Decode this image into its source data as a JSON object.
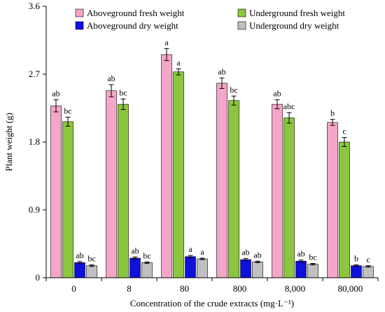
{
  "chart_data": {
    "type": "bar",
    "xlabel": "Concentration of the crude extracts (mg·L⁻¹)",
    "ylabel": "Plant weight (g)",
    "ylim": [
      0,
      3.6
    ],
    "yticks": [
      "0",
      "0.9",
      "1.8",
      "2.7",
      "3.6"
    ],
    "grid": false,
    "legend_position": "top",
    "categories": [
      "0",
      "8",
      "80",
      "800",
      "8,000",
      "80,000"
    ],
    "series": [
      {
        "name": "Aboveground fresh weight",
        "color": "#f4a6c8",
        "values": [
          2.28,
          2.48,
          2.96,
          2.58,
          2.3,
          2.06
        ],
        "errors": [
          0.08,
          0.08,
          0.08,
          0.07,
          0.06,
          0.04
        ],
        "labels": [
          "ab",
          "ab",
          "a",
          "ab",
          "ab",
          "b"
        ]
      },
      {
        "name": "Underground fresh weight",
        "color": "#8cc63f",
        "values": [
          2.07,
          2.3,
          2.73,
          2.35,
          2.12,
          1.8
        ],
        "errors": [
          0.06,
          0.07,
          0.04,
          0.06,
          0.07,
          0.06
        ],
        "labels": [
          "bc",
          "bc",
          "a",
          "bc",
          "abc",
          "c"
        ]
      },
      {
        "name": "Aboveground dry weight",
        "color": "#1010dd",
        "values": [
          0.2,
          0.26,
          0.28,
          0.24,
          0.22,
          0.16
        ],
        "errors": [
          0.015,
          0.015,
          0.015,
          0.015,
          0.015,
          0.01
        ],
        "labels": [
          "ab",
          "ab",
          "a",
          "ab",
          "ab",
          "b"
        ]
      },
      {
        "name": "Underground dry weight",
        "color": "#c0c0c0",
        "values": [
          0.16,
          0.2,
          0.25,
          0.21,
          0.18,
          0.15
        ],
        "errors": [
          0.01,
          0.01,
          0.01,
          0.01,
          0.01,
          0.01
        ],
        "labels": [
          "bc",
          "bc",
          "a",
          "ab",
          "bc",
          "c"
        ]
      }
    ]
  }
}
